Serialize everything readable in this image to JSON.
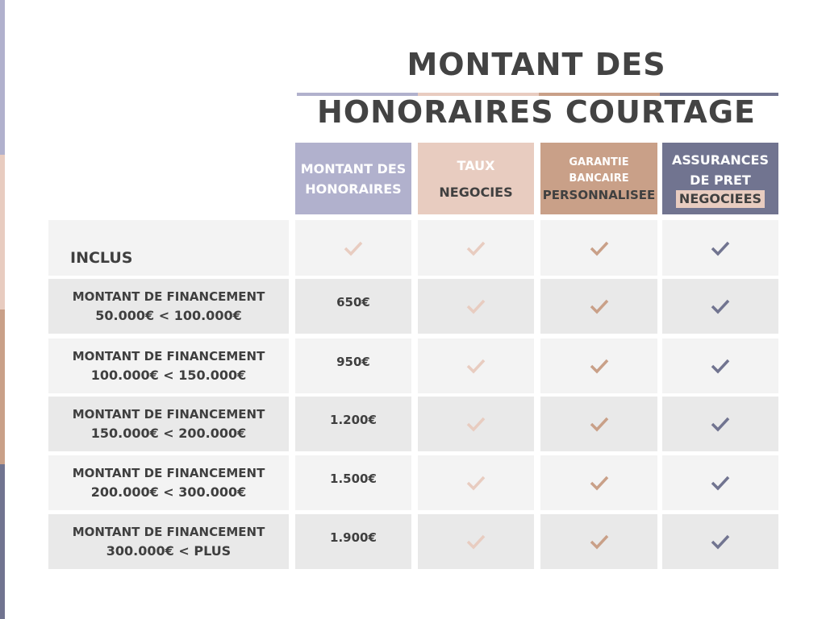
{
  "colors": {
    "lavender": "#b1b1cd",
    "pink": "#e8ccc0",
    "tan": "#c9a088",
    "slate": "#717490",
    "row_light": "#f3f3f3",
    "row_dark": "#e9e9e9"
  },
  "title": {
    "line1": "MONTANT DES",
    "line2": "HONORAIRES COURTAGE"
  },
  "headers": [
    {
      "lines": [
        "MONTANT DES",
        "HONORAIRES"
      ],
      "sub": ""
    },
    {
      "lines": [
        "TAUX"
      ],
      "sub": "NEGOCIES"
    },
    {
      "lines": [
        "GARANTIE",
        "BANCAIRE"
      ],
      "sub": "PERSONNALISEE"
    },
    {
      "lines": [
        "ASSURANCES",
        "DE PRET"
      ],
      "sub": "NEGOCIEES"
    }
  ],
  "rows": [
    {
      "label": "INCLUS",
      "range": "",
      "fee": "",
      "checks": [
        true,
        true,
        true,
        true
      ]
    },
    {
      "label": "MONTANT DE FINANCEMENT",
      "range": "50.000€ < 100.000€",
      "fee": "650€",
      "checks": [
        false,
        true,
        true,
        true
      ]
    },
    {
      "label": "MONTANT DE FINANCEMENT",
      "range": "100.000€ < 150.000€",
      "fee": "950€",
      "checks": [
        false,
        true,
        true,
        true
      ]
    },
    {
      "label": "MONTANT DE FINANCEMENT",
      "range": "150.000€ < 200.000€",
      "fee": "1.200€",
      "checks": [
        false,
        true,
        true,
        true
      ]
    },
    {
      "label": "MONTANT DE FINANCEMENT",
      "range": "200.000€ < 300.000€",
      "fee": "1.500€",
      "checks": [
        false,
        true,
        true,
        true
      ]
    },
    {
      "label": "MONTANT DE FINANCEMENT",
      "range": "300.000€ < PLUS",
      "fee": "1.900€",
      "checks": [
        false,
        true,
        true,
        true
      ]
    }
  ]
}
